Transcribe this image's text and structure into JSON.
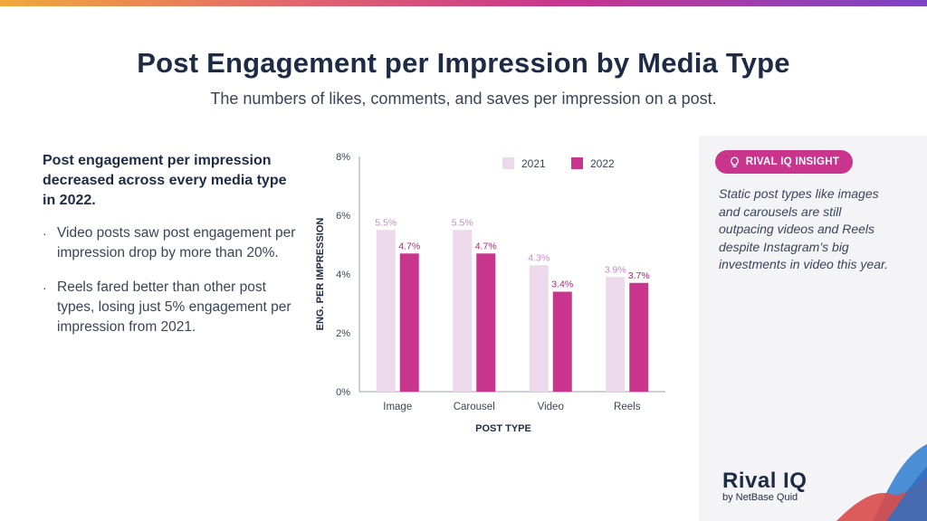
{
  "title": "Post Engagement per Impression by Media Type",
  "subtitle": "The numbers of likes, comments, and saves per impression on a post.",
  "left": {
    "heading": "Post engagement per impression decreased across every media type in 2022.",
    "bullets": [
      "Video posts saw post engagement per impression drop by more than 20%.",
      "Reels fared better than other post types, losing just 5% engagement per impression from 2021."
    ]
  },
  "insight": {
    "badge": "RIVAL IQ INSIGHT",
    "text": "Static post types like images and carousels are still outpacing videos and Reels despite Instagram’s big investments in video this year."
  },
  "logo": {
    "name": "Rival IQ",
    "tagline": "by NetBase Quid"
  },
  "colors": {
    "accent": "#c9358d",
    "light": "#ecd9ec",
    "label_light": "#c48ac4",
    "label_dark": "#a8227a"
  },
  "chart_data": {
    "type": "bar",
    "categories": [
      "Image",
      "Carousel",
      "Video",
      "Reels"
    ],
    "series": [
      {
        "name": "2021",
        "values": [
          5.5,
          5.5,
          4.3,
          3.9
        ],
        "labels": [
          "5.5%",
          "5.5%",
          "4.3%",
          "3.9%"
        ]
      },
      {
        "name": "2022",
        "values": [
          4.7,
          4.7,
          3.4,
          3.7
        ],
        "labels": [
          "4.7%",
          "4.7%",
          "3.4%",
          "3.7%"
        ]
      }
    ],
    "xlabel": "POST TYPE",
    "ylabel": "ENG. PER IMPRESSION",
    "ylim": [
      0,
      8
    ],
    "yticks": [
      "0%",
      "2%",
      "4%",
      "6%",
      "8%"
    ],
    "legend": "top-right",
    "grid": false
  }
}
